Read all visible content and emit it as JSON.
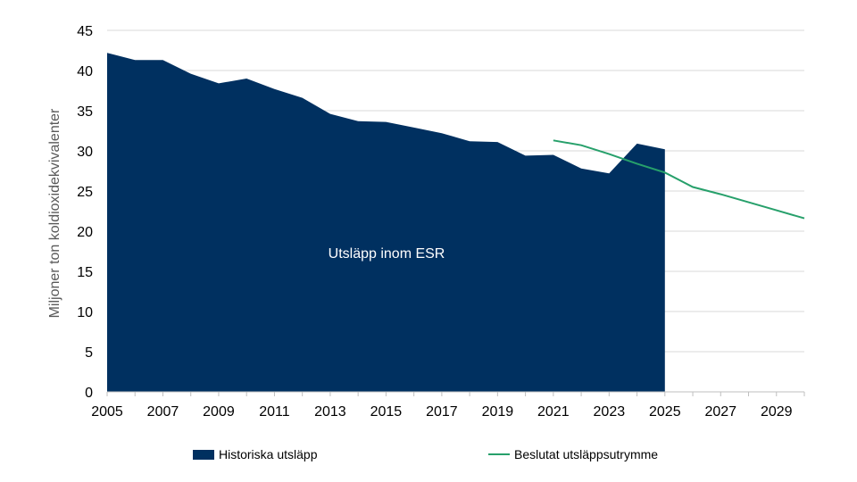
{
  "chart_data": {
    "type": "area",
    "ylabel": "Miljoner ton koldioxidekvivalenter",
    "xlabel": "",
    "xlim": [
      2005,
      2030
    ],
    "ylim": [
      0,
      45
    ],
    "y_ticks": [
      0,
      5,
      10,
      15,
      20,
      25,
      30,
      35,
      40,
      45
    ],
    "x_tick_labels": [
      "2005",
      "2007",
      "2009",
      "2011",
      "2013",
      "2015",
      "2017",
      "2019",
      "2021",
      "2023",
      "2025",
      "2027",
      "2029"
    ],
    "grid": "horizontal",
    "legend_position": "bottom",
    "annotation": "Utsläpp inom ESR",
    "series": [
      {
        "name": "Historiska utsläpp",
        "kind": "area",
        "color": "#003060",
        "x": [
          2005,
          2006,
          2007,
          2008,
          2009,
          2010,
          2011,
          2012,
          2013,
          2014,
          2015,
          2016,
          2017,
          2018,
          2019,
          2020,
          2021,
          2022,
          2023,
          2024,
          2025
        ],
        "values": [
          42.2,
          41.3,
          41.3,
          39.6,
          38.4,
          39.0,
          37.7,
          36.6,
          34.6,
          33.7,
          33.6,
          32.9,
          32.2,
          31.2,
          31.1,
          29.4,
          29.5,
          27.8,
          27.2,
          30.9,
          30.2
        ]
      },
      {
        "name": "Beslutat utsläppsutrymme",
        "kind": "line",
        "color": "#27a06b",
        "x": [
          2021,
          2022,
          2023,
          2024,
          2025,
          2026,
          2027,
          2028,
          2029,
          2030
        ],
        "values": [
          31.3,
          30.7,
          29.6,
          28.4,
          27.3,
          25.5,
          24.6,
          23.6,
          22.6,
          21.6
        ]
      }
    ]
  }
}
